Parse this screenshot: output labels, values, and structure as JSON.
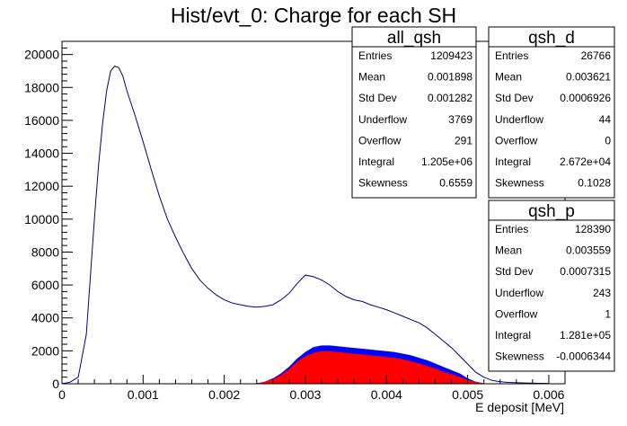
{
  "chart_data": {
    "type": "histogram",
    "title": "Hist/evt_0: Charge for each SH",
    "xlabel": "E deposit [MeV]",
    "ylabel": "",
    "xlim": [
      0,
      0.0062
    ],
    "ylim": [
      0,
      20800
    ],
    "x_ticks": [
      "0",
      "0.001",
      "0.002",
      "0.003",
      "0.004",
      "0.005",
      "0.006"
    ],
    "y_ticks": [
      "0",
      "2000",
      "4000",
      "6000",
      "8000",
      "10000",
      "12000",
      "14000",
      "16000",
      "18000",
      "20000"
    ],
    "series": [
      {
        "stat_box": "all_qsh",
        "style": "outline",
        "color": "#000080",
        "points": [
          [
            0,
            0
          ],
          [
            0.0001,
            100
          ],
          [
            0.0002,
            400
          ],
          [
            0.0003,
            3000
          ],
          [
            0.00035,
            6500
          ],
          [
            0.0004,
            10000
          ],
          [
            0.00045,
            13200
          ],
          [
            0.0005,
            15800
          ],
          [
            0.00055,
            17800
          ],
          [
            0.0006,
            19000
          ],
          [
            0.00065,
            19300
          ],
          [
            0.0007,
            19200
          ],
          [
            0.00075,
            18700
          ],
          [
            0.0008,
            17800
          ],
          [
            0.0009,
            16300
          ],
          [
            0.001,
            14700
          ],
          [
            0.0011,
            13000
          ],
          [
            0.0012,
            11400
          ],
          [
            0.0013,
            10000
          ],
          [
            0.0014,
            8900
          ],
          [
            0.0015,
            7900
          ],
          [
            0.0016,
            7000
          ],
          [
            0.0017,
            6300
          ],
          [
            0.0018,
            5800
          ],
          [
            0.0019,
            5400
          ],
          [
            0.002,
            5100
          ],
          [
            0.0021,
            4900
          ],
          [
            0.0022,
            4800
          ],
          [
            0.0023,
            4700
          ],
          [
            0.0024,
            4650
          ],
          [
            0.0025,
            4700
          ],
          [
            0.0026,
            4800
          ],
          [
            0.0027,
            5100
          ],
          [
            0.0028,
            5500
          ],
          [
            0.0029,
            6100
          ],
          [
            0.003,
            6600
          ],
          [
            0.0031,
            6500
          ],
          [
            0.0032,
            6300
          ],
          [
            0.0033,
            6000
          ],
          [
            0.0034,
            5600
          ],
          [
            0.0035,
            5300
          ],
          [
            0.0036,
            5100
          ],
          [
            0.0037,
            5000
          ],
          [
            0.0038,
            4800
          ],
          [
            0.0039,
            4650
          ],
          [
            0.004,
            4500
          ],
          [
            0.0041,
            4300
          ],
          [
            0.0042,
            4100
          ],
          [
            0.0043,
            3900
          ],
          [
            0.0044,
            3700
          ],
          [
            0.0045,
            3400
          ],
          [
            0.0046,
            3000
          ],
          [
            0.0047,
            2600
          ],
          [
            0.0048,
            2200
          ],
          [
            0.0049,
            1700
          ],
          [
            0.005,
            1200
          ],
          [
            0.0051,
            700
          ],
          [
            0.0052,
            400
          ],
          [
            0.0053,
            200
          ],
          [
            0.0054,
            120
          ],
          [
            0.0055,
            80
          ],
          [
            0.0057,
            50
          ],
          [
            0.0059,
            30
          ],
          [
            0.006,
            20
          ]
        ]
      },
      {
        "stat_box": "qsh_p",
        "style": "filled",
        "color": "#0000ff",
        "points": [
          [
            0.0024,
            0
          ],
          [
            0.0025,
            100
          ],
          [
            0.0026,
            300
          ],
          [
            0.0027,
            600
          ],
          [
            0.0028,
            1000
          ],
          [
            0.0029,
            1500
          ],
          [
            0.003,
            1900
          ],
          [
            0.0031,
            2200
          ],
          [
            0.0032,
            2300
          ],
          [
            0.0033,
            2300
          ],
          [
            0.0034,
            2250
          ],
          [
            0.0035,
            2200
          ],
          [
            0.0036,
            2150
          ],
          [
            0.0037,
            2100
          ],
          [
            0.0038,
            2050
          ],
          [
            0.0039,
            2000
          ],
          [
            0.004,
            1950
          ],
          [
            0.0041,
            1900
          ],
          [
            0.0042,
            1800
          ],
          [
            0.0043,
            1700
          ],
          [
            0.0044,
            1550
          ],
          [
            0.0045,
            1400
          ],
          [
            0.0046,
            1200
          ],
          [
            0.0047,
            1000
          ],
          [
            0.0048,
            800
          ],
          [
            0.0049,
            600
          ],
          [
            0.005,
            300
          ],
          [
            0.0051,
            100
          ],
          [
            0.0052,
            0
          ]
        ]
      },
      {
        "stat_box": "qsh_d",
        "style": "filled",
        "color": "#ff0000",
        "points": [
          [
            0.0024,
            0
          ],
          [
            0.0025,
            80
          ],
          [
            0.0026,
            250
          ],
          [
            0.0027,
            500
          ],
          [
            0.0028,
            850
          ],
          [
            0.0029,
            1300
          ],
          [
            0.003,
            1650
          ],
          [
            0.0031,
            1850
          ],
          [
            0.0032,
            1950
          ],
          [
            0.0033,
            1950
          ],
          [
            0.0034,
            1900
          ],
          [
            0.0035,
            1850
          ],
          [
            0.0036,
            1800
          ],
          [
            0.0037,
            1750
          ],
          [
            0.0038,
            1700
          ],
          [
            0.0039,
            1650
          ],
          [
            0.004,
            1600
          ],
          [
            0.0041,
            1550
          ],
          [
            0.0042,
            1450
          ],
          [
            0.0043,
            1350
          ],
          [
            0.0044,
            1200
          ],
          [
            0.0045,
            1050
          ],
          [
            0.0046,
            900
          ],
          [
            0.0047,
            700
          ],
          [
            0.0048,
            550
          ],
          [
            0.0049,
            400
          ],
          [
            0.005,
            200
          ],
          [
            0.0051,
            80
          ],
          [
            0.0052,
            0
          ]
        ]
      }
    ],
    "stats": [
      {
        "name": "all_qsh",
        "rows": [
          {
            "label": "Entries",
            "value": "1209423"
          },
          {
            "label": "Mean",
            "value": "0.001898"
          },
          {
            "label": "Std Dev",
            "value": "0.001282"
          },
          {
            "label": "Underflow",
            "value": "3769"
          },
          {
            "label": "Overflow",
            "value": "291"
          },
          {
            "label": "Integral",
            "value": "1.205e+06"
          },
          {
            "label": "Skewness",
            "value": "0.6559"
          }
        ]
      },
      {
        "name": "qsh_d",
        "rows": [
          {
            "label": "Entries",
            "value": "26766"
          },
          {
            "label": "Mean",
            "value": "0.003621"
          },
          {
            "label": "Std Dev",
            "value": "0.0006926"
          },
          {
            "label": "Underflow",
            "value": "44"
          },
          {
            "label": "Overflow",
            "value": "0"
          },
          {
            "label": "Integral",
            "value": "2.672e+04"
          },
          {
            "label": "Skewness",
            "value": "0.1028"
          }
        ]
      },
      {
        "name": "qsh_p",
        "rows": [
          {
            "label": "Entries",
            "value": "128390"
          },
          {
            "label": "Mean",
            "value": "0.003559"
          },
          {
            "label": "Std Dev",
            "value": "0.0007315"
          },
          {
            "label": "Underflow",
            "value": "243"
          },
          {
            "label": "Overflow",
            "value": "1"
          },
          {
            "label": "Integral",
            "value": "1.281e+05"
          },
          {
            "label": "Skewness",
            "value": "-0.0006344"
          }
        ]
      }
    ]
  }
}
